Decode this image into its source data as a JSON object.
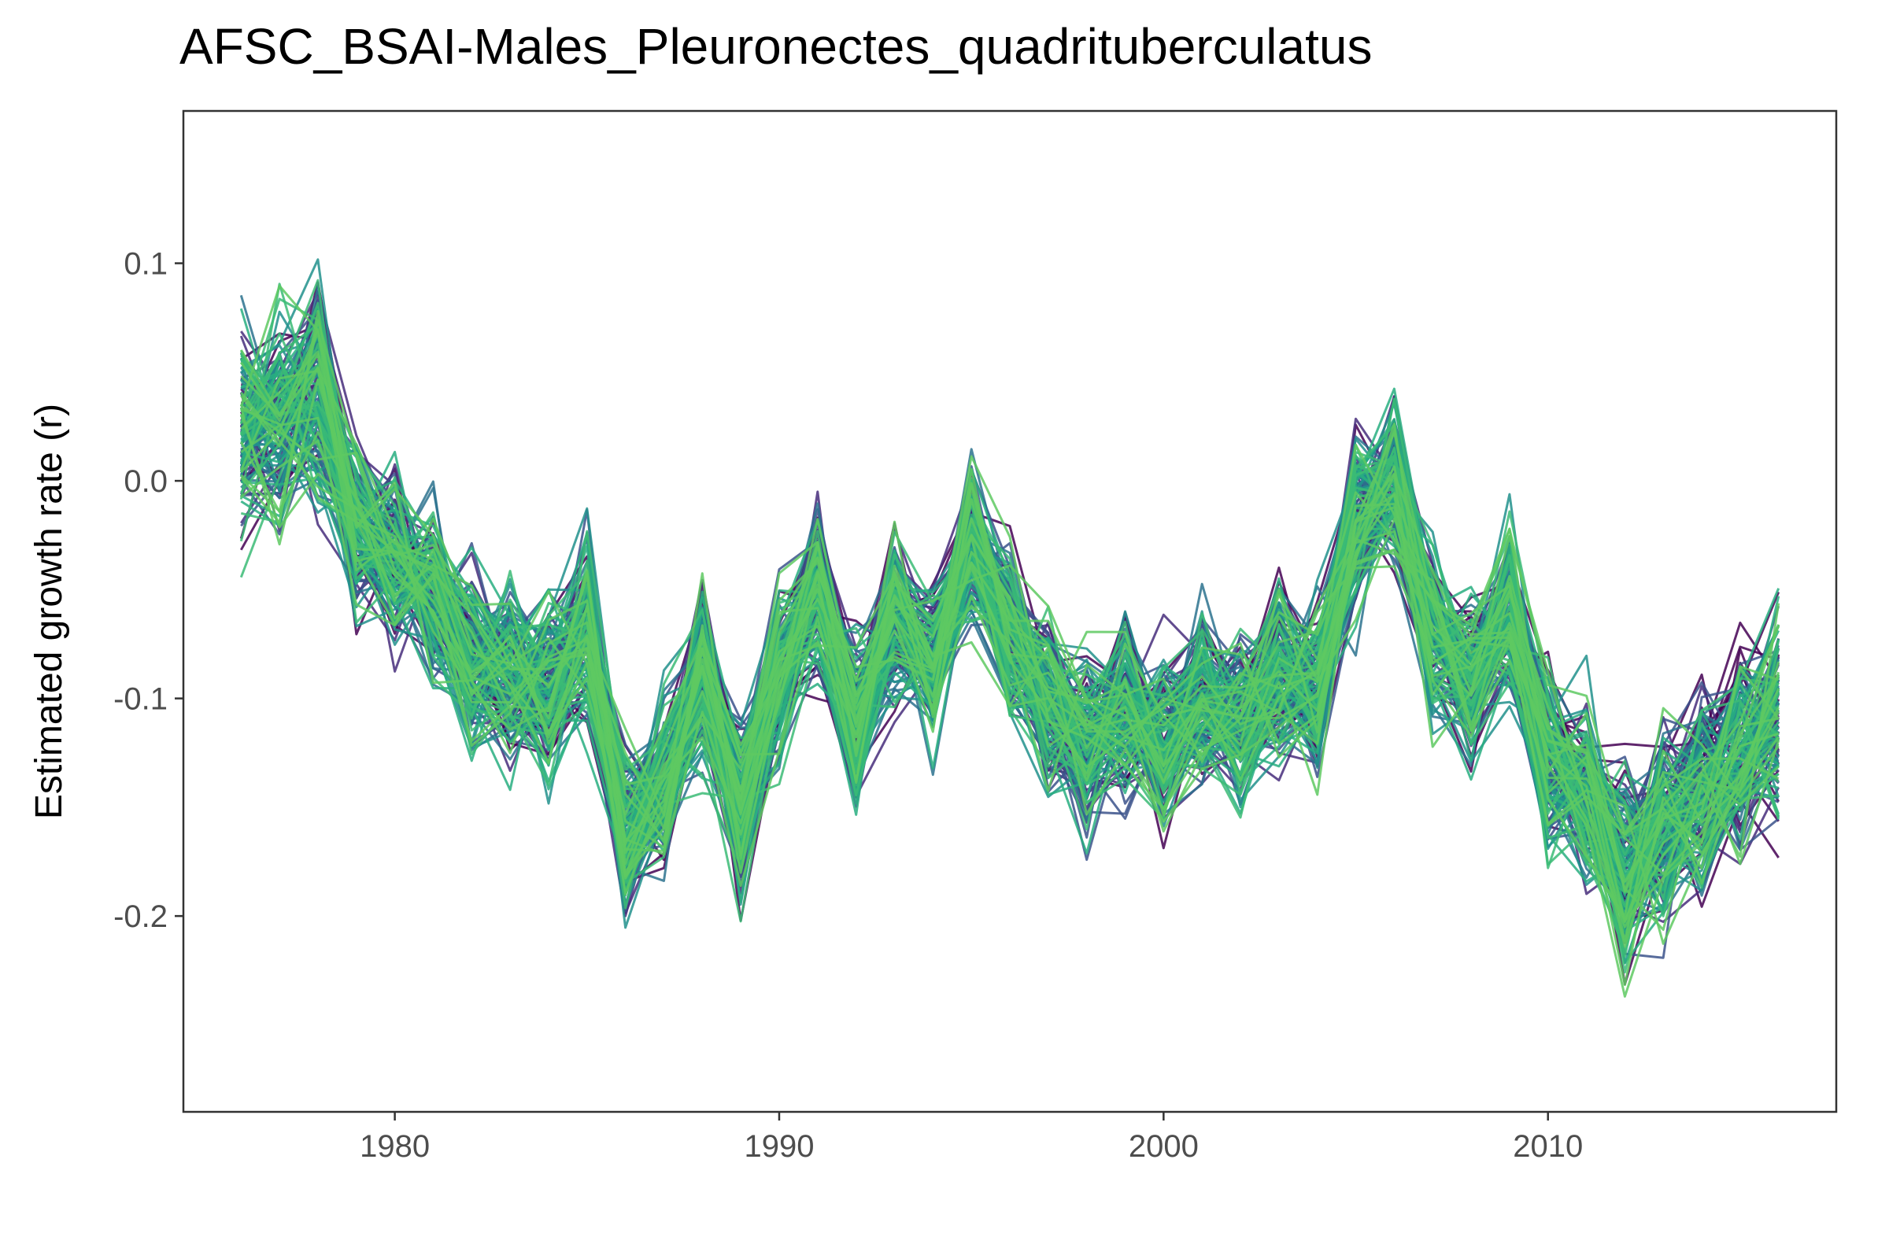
{
  "chart_data": {
    "type": "line",
    "title": "AFSC_BSAI-Males_Pleuronectes_quadrituberculatus",
    "xlabel": "",
    "ylabel": "Estimated growth rate (r)",
    "xlim": [
      1974.5,
      2017.5
    ],
    "ylim": [
      -0.29,
      0.17
    ],
    "x_ticks": [
      1980,
      1990,
      2000,
      2010
    ],
    "x_tick_labels": [
      "1980",
      "1990",
      "2000",
      "2010"
    ],
    "y_ticks": [
      -0.2,
      -0.1,
      0.0,
      0.1
    ],
    "y_tick_labels": [
      "-0.2",
      "-0.1",
      "0.0",
      "0.1"
    ],
    "grid": false,
    "legend": "none",
    "colors": [
      "#440154",
      "#472d7b",
      "#3b528b",
      "#2c728e",
      "#21918c",
      "#28ae80",
      "#3bbb75",
      "#5ec962"
    ],
    "x": [
      1976,
      1977,
      1978,
      1979,
      1980,
      1981,
      1982,
      1983,
      1984,
      1985,
      1986,
      1987,
      1988,
      1989,
      1990,
      1991,
      1992,
      1993,
      1994,
      1995,
      1996,
      1997,
      1998,
      1999,
      2000,
      2001,
      2002,
      2003,
      2004,
      2005,
      2006,
      2007,
      2008,
      2009,
      2010,
      2011,
      2012,
      2013,
      2014,
      2015,
      2016
    ],
    "mean_series": [
      0.02,
      0.025,
      0.04,
      -0.02,
      -0.035,
      -0.05,
      -0.085,
      -0.09,
      -0.095,
      -0.07,
      -0.16,
      -0.14,
      -0.09,
      -0.15,
      -0.09,
      -0.05,
      -0.11,
      -0.06,
      -0.085,
      -0.03,
      -0.07,
      -0.1,
      -0.12,
      -0.105,
      -0.12,
      -0.1,
      -0.11,
      -0.09,
      -0.095,
      -0.02,
      0.0,
      -0.07,
      -0.09,
      -0.06,
      -0.13,
      -0.14,
      -0.18,
      -0.16,
      -0.14,
      -0.12,
      -0.11
    ],
    "spread": [
      0.03,
      0.03,
      0.03,
      0.025,
      0.025,
      0.025,
      0.025,
      0.025,
      0.025,
      0.025,
      0.025,
      0.025,
      0.025,
      0.025,
      0.025,
      0.025,
      0.025,
      0.025,
      0.025,
      0.025,
      0.025,
      0.025,
      0.025,
      0.025,
      0.025,
      0.025,
      0.025,
      0.025,
      0.025,
      0.025,
      0.025,
      0.025,
      0.025,
      0.025,
      0.025,
      0.025,
      0.03,
      0.03,
      0.03,
      0.03,
      0.03
    ]
  }
}
